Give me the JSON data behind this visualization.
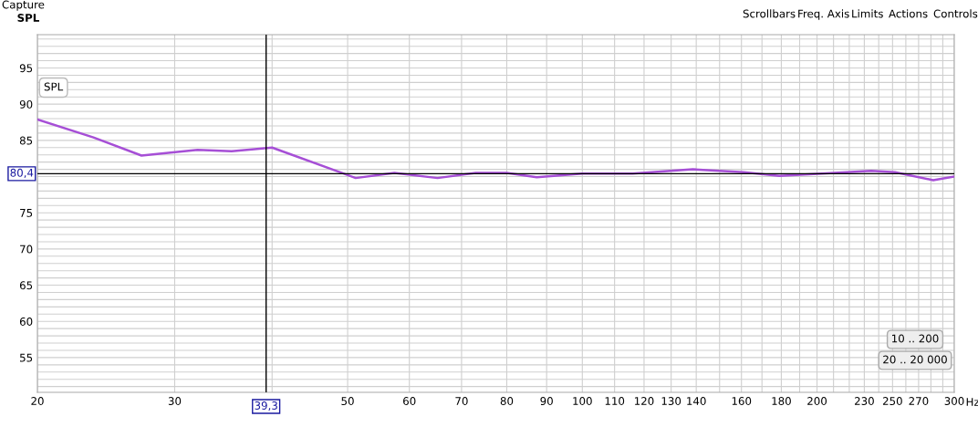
{
  "chart_data": {
    "type": "line",
    "ylabel": "SPL",
    "xlabel": "Hz",
    "log": "x",
    "grid": true,
    "marker": "none",
    "line_style": "solid",
    "xlim": [
      20,
      300
    ],
    "ylim": [
      50.2,
      99.6
    ],
    "xticks": [
      20,
      30,
      {
        "value": 40,
        "label": null
      },
      50,
      60,
      70,
      80,
      90,
      100,
      110,
      120,
      130,
      140,
      {
        "value": 150,
        "label": null
      },
      160,
      {
        "value": 170,
        "label": null
      },
      180,
      {
        "value": 190,
        "label": null
      },
      200,
      {
        "value": 210,
        "label": null
      },
      {
        "value": 220,
        "label": null
      },
      230,
      {
        "value": 240,
        "label": null
      },
      250,
      {
        "value": 260,
        "label": null
      },
      270,
      {
        "value": 280,
        "label": null
      },
      {
        "value": 290,
        "label": null
      },
      300
    ],
    "yticks": [
      {
        "value": 51,
        "label": null
      },
      {
        "value": 52,
        "label": null
      },
      {
        "value": 53,
        "label": null
      },
      {
        "value": 54,
        "label": null
      },
      55,
      {
        "value": 56,
        "label": null
      },
      {
        "value": 57,
        "label": null
      },
      {
        "value": 58,
        "label": null
      },
      {
        "value": 59,
        "label": null
      },
      60,
      {
        "value": 61,
        "label": null
      },
      {
        "value": 62,
        "label": null
      },
      {
        "value": 63,
        "label": null
      },
      {
        "value": 64,
        "label": null
      },
      65,
      {
        "value": 66,
        "label": null
      },
      {
        "value": 67,
        "label": null
      },
      {
        "value": 68,
        "label": null
      },
      {
        "value": 69,
        "label": null
      },
      70,
      {
        "value": 71,
        "label": null
      },
      {
        "value": 72,
        "label": null
      },
      {
        "value": 73,
        "label": null
      },
      {
        "value": 74,
        "label": null
      },
      75,
      {
        "value": 76,
        "label": null
      },
      {
        "value": 77,
        "label": null
      },
      {
        "value": 78,
        "label": null
      },
      {
        "value": 79,
        "label": null
      },
      {
        "value": 80,
        "label": null
      },
      {
        "value": 81,
        "label": null
      },
      {
        "value": 82,
        "label": null
      },
      {
        "value": 83,
        "label": null
      },
      {
        "value": 84,
        "label": null
      },
      85,
      {
        "value": 86,
        "label": null
      },
      {
        "value": 87,
        "label": null
      },
      {
        "value": 88,
        "label": null
      },
      {
        "value": 89,
        "label": null
      },
      90,
      {
        "value": 91,
        "label": null
      },
      {
        "value": 92,
        "label": null
      },
      {
        "value": 93,
        "label": null
      },
      {
        "value": 94,
        "label": null
      },
      95,
      {
        "value": 96,
        "label": null
      },
      {
        "value": 97,
        "label": null
      },
      {
        "value": 98,
        "label": null
      },
      {
        "value": 99,
        "label": null
      }
    ],
    "series": [
      {
        "color": "#a64fd6",
        "x": [
          20,
          23.6,
          27.2,
          32.1,
          35.5,
          40.0,
          49.2,
          51.2,
          57.4,
          65.2,
          73.0,
          80.0,
          87.4,
          100,
          116,
          138.6,
          161,
          178.9,
          203,
          234.7,
          251.8,
          281.9,
          300
        ],
        "values": [
          87.9,
          85.4,
          82.9,
          83.7,
          83.5,
          84.0,
          80.5,
          79.8,
          80.5,
          79.8,
          80.5,
          80.5,
          79.9,
          80.4,
          80.4,
          81.0,
          80.6,
          80.1,
          80.4,
          80.8,
          80.6,
          79.5,
          80.0
        ]
      }
    ],
    "ref_lines": [
      {
        "axis": "x",
        "value": 39.3,
        "label": "39,3",
        "color": "#000000"
      },
      {
        "axis": "y",
        "value": 80.4,
        "label": "80,4",
        "color": "#000000"
      }
    ],
    "annotations": [
      "Capture",
      "Scrollbars",
      "Freq. Axis",
      "Limits",
      "Actions",
      "Controls",
      "SPL",
      "10 .. 200",
      "20 .. 20 000"
    ]
  }
}
